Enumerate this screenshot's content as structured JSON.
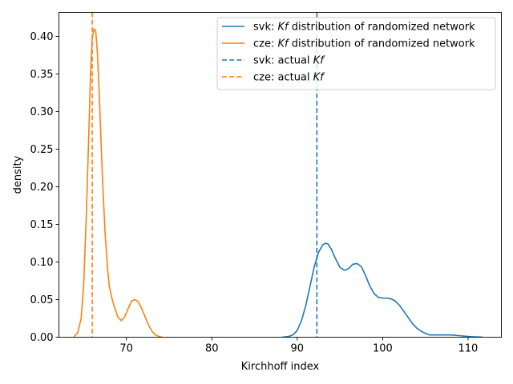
{
  "chart_data": {
    "type": "line",
    "xlabel": "Kirchhoff index",
    "ylabel": "density",
    "xlim": [
      62.1,
      113.9
    ],
    "ylim": [
      0,
      0.432
    ],
    "xticks": [
      70,
      80,
      90,
      100,
      110
    ],
    "yticks": [
      0.0,
      0.05,
      0.1,
      0.15,
      0.2,
      0.25,
      0.3,
      0.35,
      0.4
    ],
    "ytick_labels": [
      "0.00",
      "0.05",
      "0.10",
      "0.15",
      "0.20",
      "0.25",
      "0.30",
      "0.35",
      "0.40"
    ],
    "grid": false,
    "legend_position": "top-right",
    "series": [
      {
        "name_prefix": "svk: ",
        "name_italic": "Kf",
        "name_suffix": " distribution of randomized network",
        "style": "solid",
        "color": "#1f77b4",
        "x": [
          88.2,
          89.0,
          89.5,
          90.0,
          90.5,
          91.0,
          91.5,
          92.0,
          92.5,
          93.0,
          93.3,
          93.6,
          94.0,
          94.5,
          95.0,
          95.5,
          96.0,
          96.5,
          97.0,
          97.5,
          98.0,
          98.5,
          99.0,
          99.5,
          100.0,
          100.5,
          101.0,
          101.5,
          102.0,
          102.5,
          103.0,
          103.5,
          104.0,
          104.5,
          105.0,
          105.5,
          106.0,
          107.0,
          108.0,
          109.0,
          110.0,
          110.8,
          111.5,
          111.7
        ],
        "y": [
          0.0,
          0.001,
          0.003,
          0.009,
          0.022,
          0.042,
          0.068,
          0.094,
          0.113,
          0.123,
          0.125,
          0.124,
          0.117,
          0.104,
          0.093,
          0.089,
          0.091,
          0.097,
          0.098,
          0.094,
          0.082,
          0.068,
          0.058,
          0.053,
          0.052,
          0.052,
          0.051,
          0.048,
          0.042,
          0.034,
          0.026,
          0.018,
          0.012,
          0.008,
          0.005,
          0.003,
          0.003,
          0.003,
          0.003,
          0.002,
          0.001,
          0.0005,
          0.0002,
          0.0
        ]
      },
      {
        "name_prefix": "cze: ",
        "name_italic": "Kf",
        "name_suffix": " distribution of randomized network",
        "style": "solid",
        "color": "#ff7f0e",
        "x": [
          63.9,
          64.3,
          64.7,
          65.0,
          65.3,
          65.6,
          65.8,
          66.0,
          66.2,
          66.4,
          66.6,
          66.8,
          67.0,
          67.2,
          67.5,
          67.8,
          68.0,
          68.3,
          68.6,
          69.0,
          69.4,
          69.8,
          70.2,
          70.6,
          71.0,
          71.4,
          71.8,
          72.2,
          72.6,
          73.0,
          73.4,
          73.8,
          74.2
        ],
        "y": [
          0.001,
          0.006,
          0.025,
          0.07,
          0.16,
          0.27,
          0.35,
          0.398,
          0.41,
          0.408,
          0.38,
          0.33,
          0.27,
          0.21,
          0.14,
          0.09,
          0.068,
          0.052,
          0.04,
          0.027,
          0.022,
          0.027,
          0.038,
          0.048,
          0.05,
          0.047,
          0.038,
          0.027,
          0.016,
          0.008,
          0.003,
          0.001,
          0.0
        ]
      },
      {
        "name_prefix": "svk: actual ",
        "name_italic": "Kf",
        "name_suffix": "",
        "style": "dashed",
        "color": "#1f77b4",
        "vline_x": 92.3
      },
      {
        "name_prefix": "cze: actual ",
        "name_italic": "Kf",
        "name_suffix": "",
        "style": "dashed",
        "color": "#ff7f0e",
        "vline_x": 66.0
      }
    ]
  }
}
